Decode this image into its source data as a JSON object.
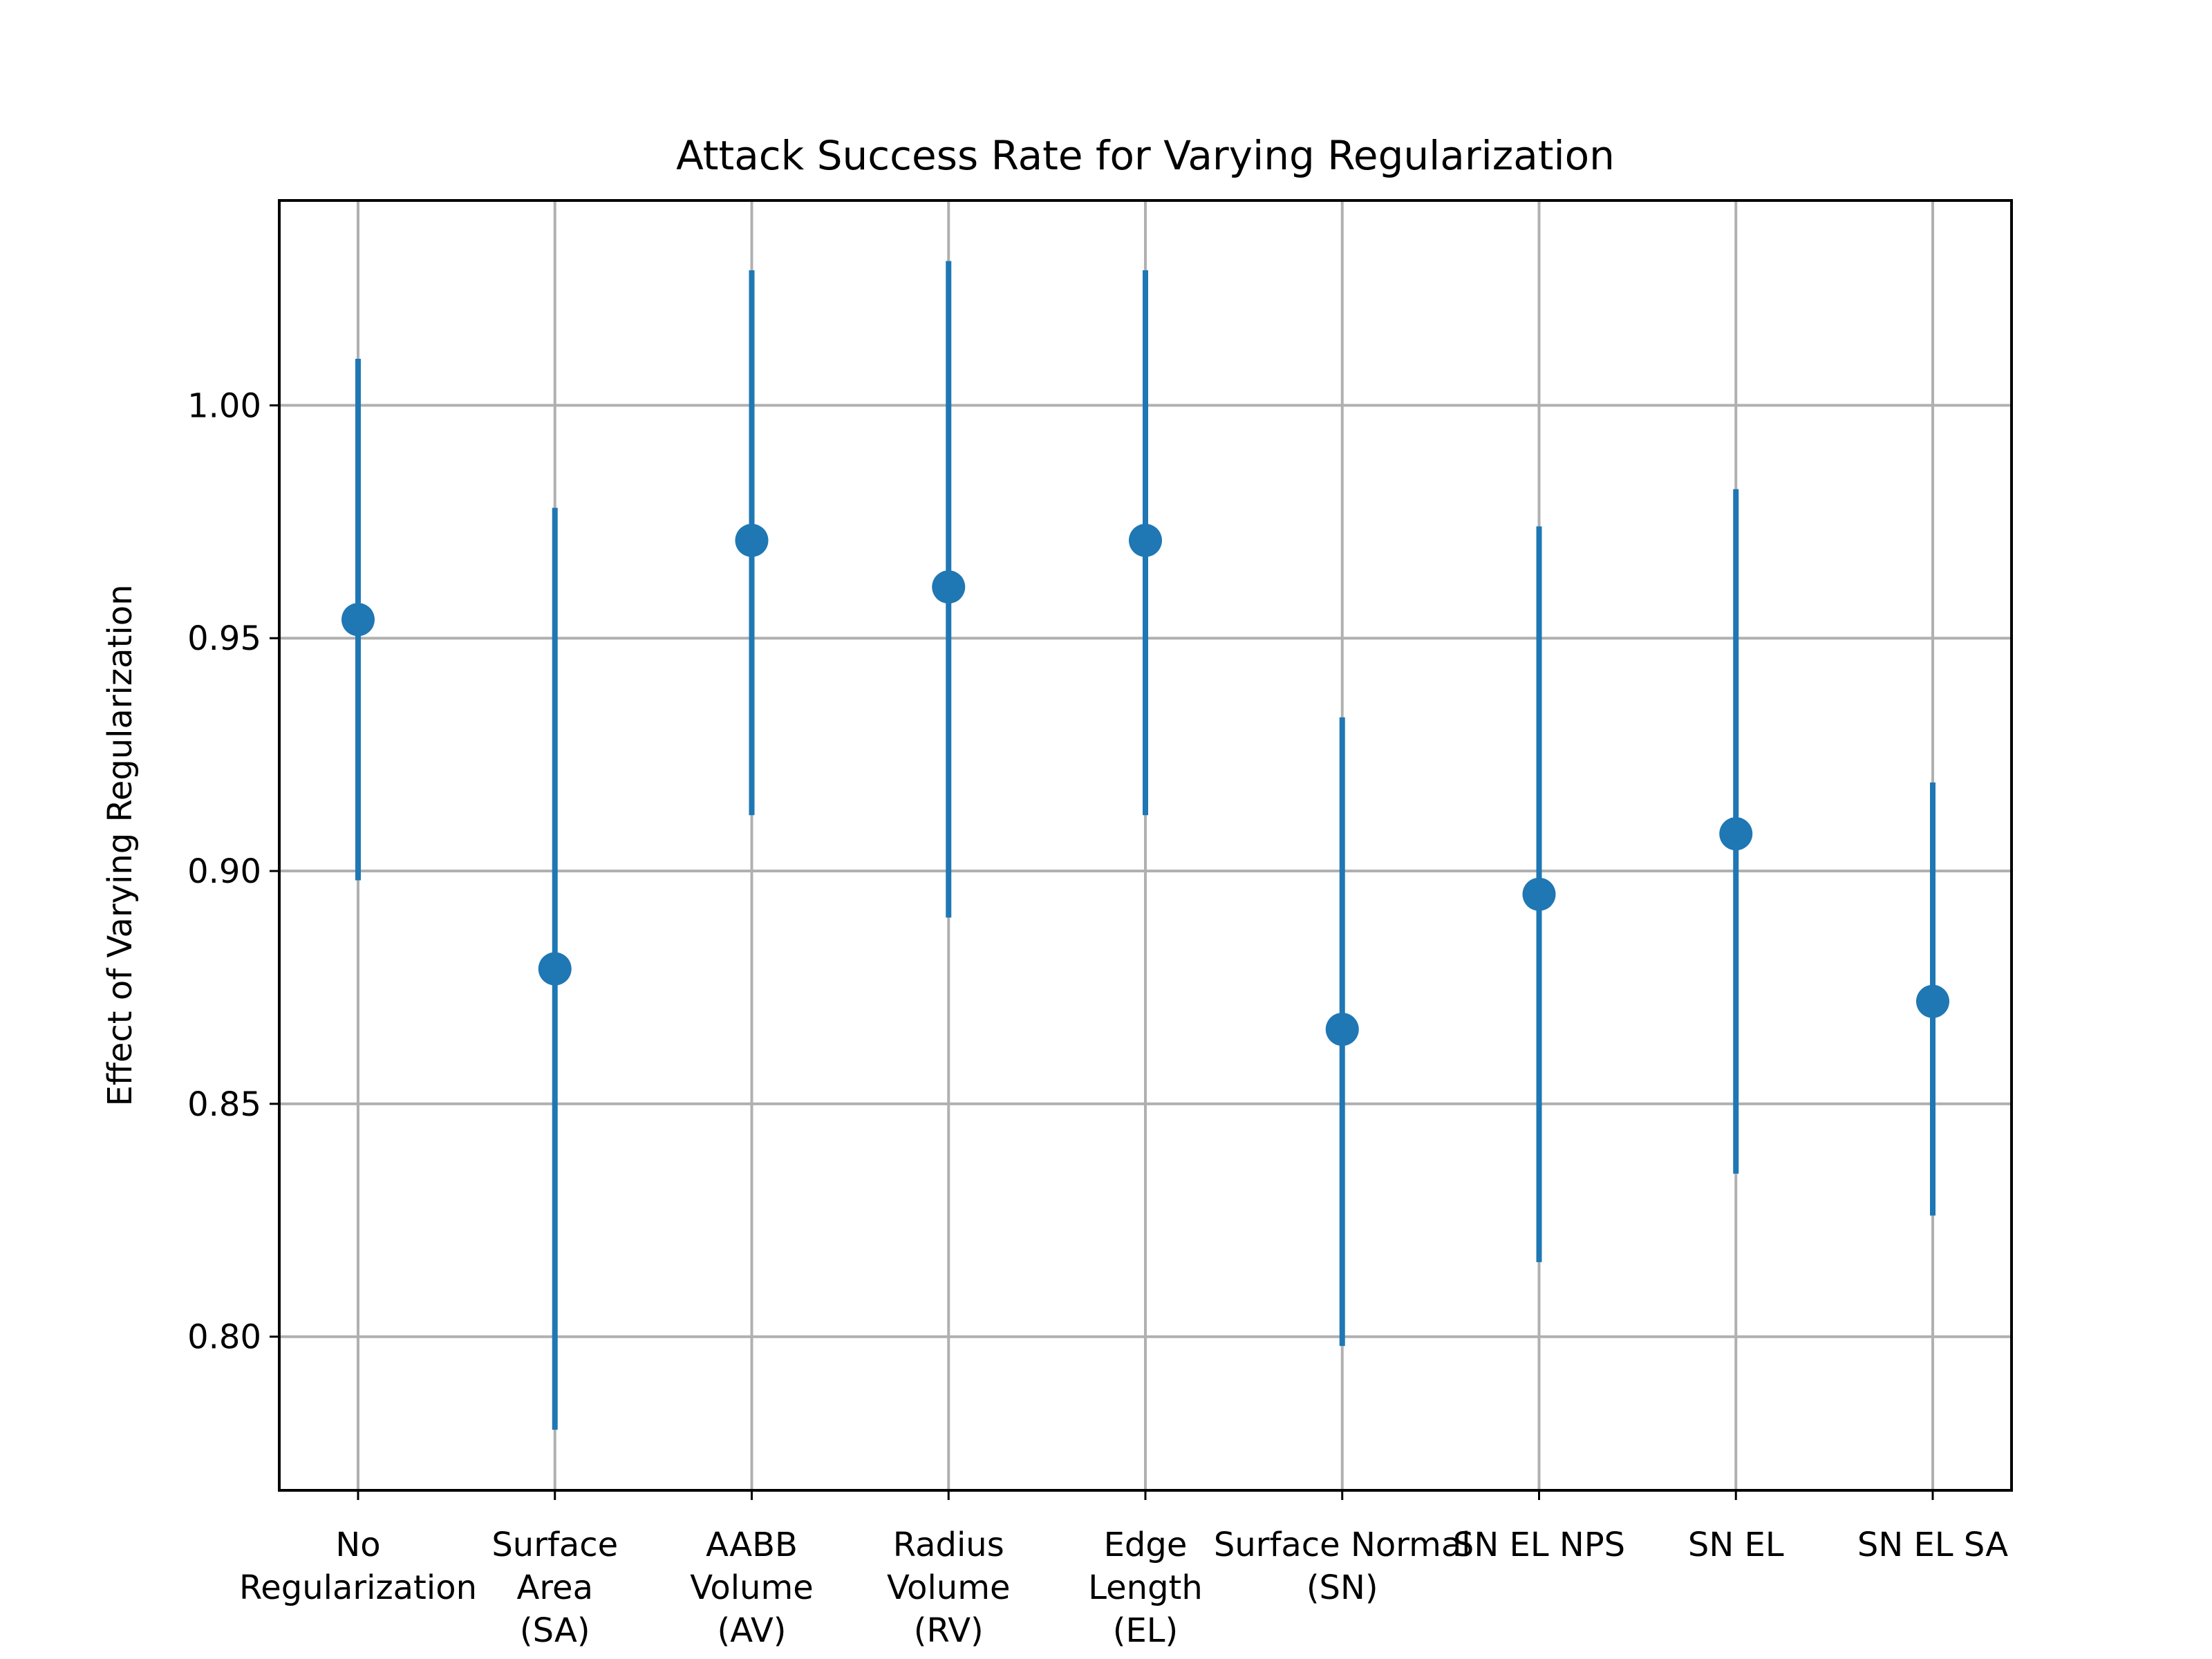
{
  "chart_data": {
    "type": "scatter",
    "title": "Attack Success Rate for Varying Regularization",
    "xlabel": "",
    "ylabel": "Effect of Varying Regularization",
    "grid": true,
    "categories": [
      [
        "No",
        "Regularization"
      ],
      [
        "Surface",
        "Area",
        "(SA)"
      ],
      [
        "AABB",
        "Volume",
        "(AV)"
      ],
      [
        "Radius",
        "Volume",
        "(RV)"
      ],
      [
        "Edge",
        "Length",
        "(EL)"
      ],
      [
        "Surface Normal",
        "(SN)"
      ],
      [
        "SN EL NPS"
      ],
      [
        "SN EL"
      ],
      [
        "SN EL SA"
      ]
    ],
    "series": [
      {
        "color": "#1f77b4",
        "values": [
          0.954,
          0.879,
          0.971,
          0.961,
          0.971,
          0.866,
          0.895,
          0.908,
          0.872
        ],
        "err_low": [
          0.898,
          0.78,
          0.912,
          0.89,
          0.912,
          0.798,
          0.816,
          0.835,
          0.826
        ],
        "err_high": [
          1.01,
          0.978,
          1.029,
          1.031,
          1.029,
          0.933,
          0.974,
          0.982,
          0.919
        ]
      }
    ],
    "ylim": [
      0.767,
      1.044
    ],
    "yticks": [
      "0.80",
      "0.85",
      "0.90",
      "0.95",
      "1.00"
    ]
  }
}
